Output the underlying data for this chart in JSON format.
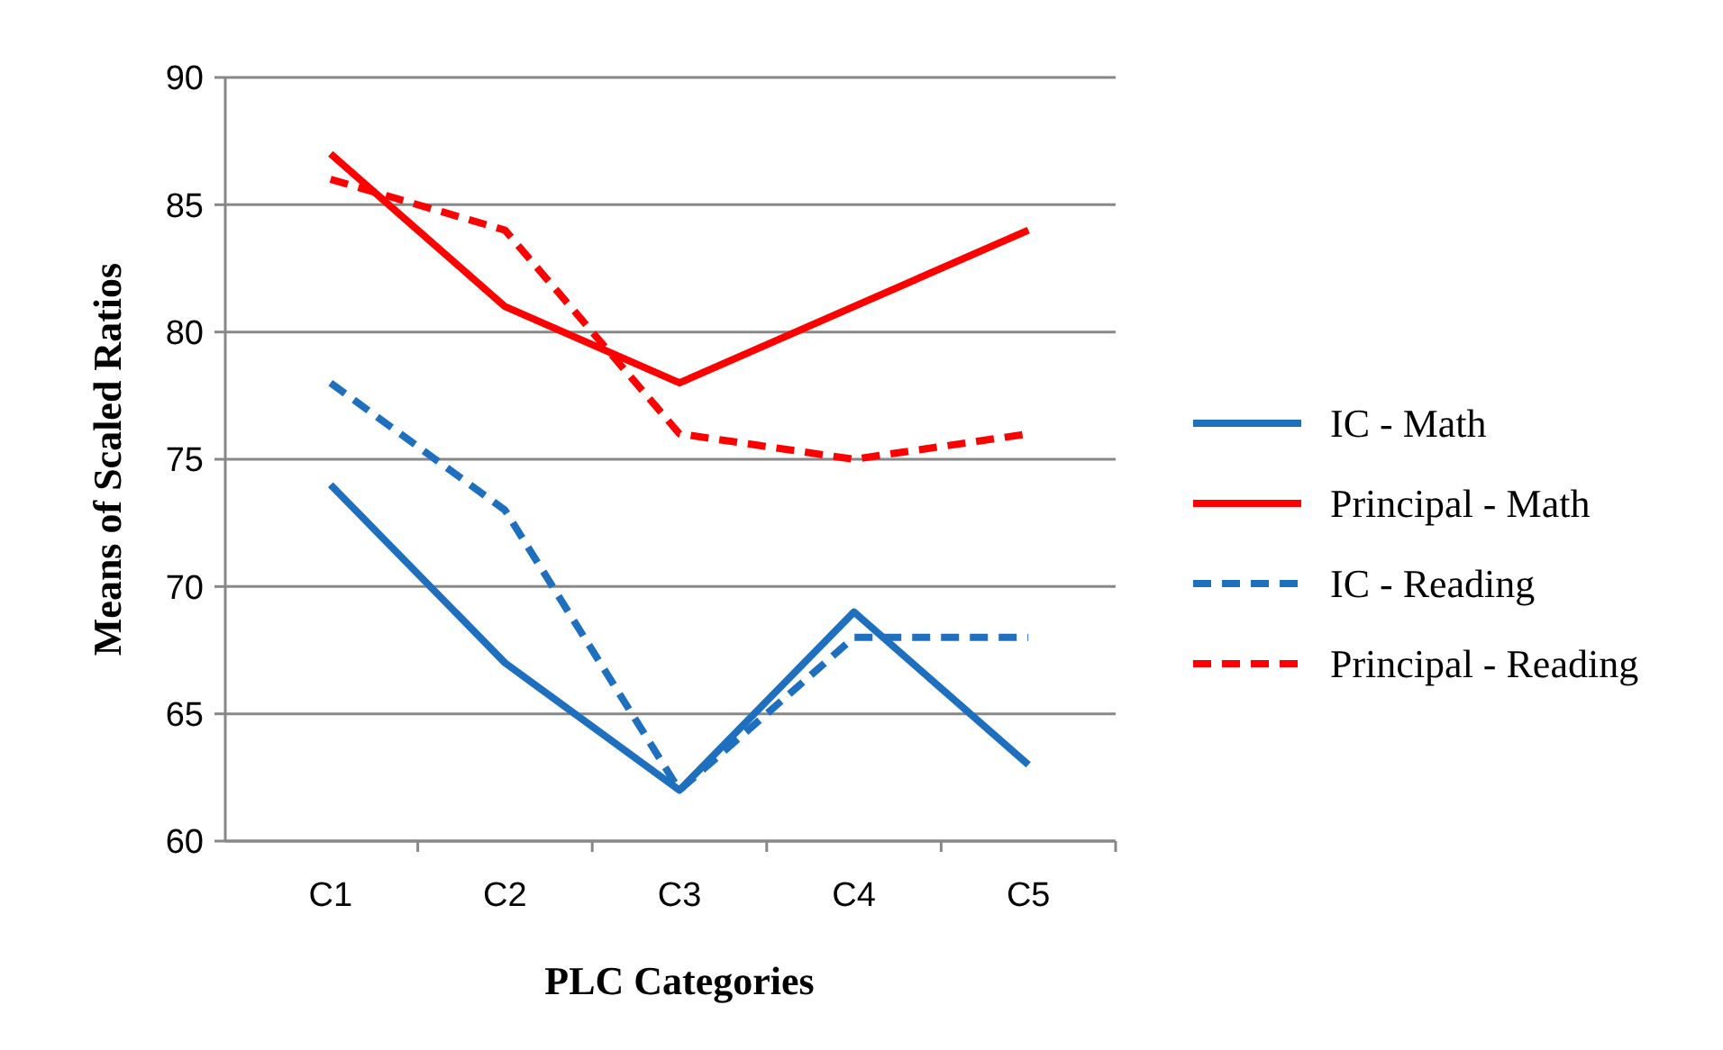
{
  "chart_data": {
    "type": "line",
    "xlabel": "PLC Categories",
    "ylabel": "Means of Scaled Ratios",
    "categories": [
      "C1",
      "C2",
      "C3",
      "C4",
      "C5"
    ],
    "series": [
      {
        "name": "IC - Math",
        "color": "#1f6fbf",
        "values": [
          74,
          67,
          62,
          69,
          63
        ],
        "line_style": "solid"
      },
      {
        "name": "Principal - Math",
        "color": "#ff0000",
        "values": [
          87,
          81,
          78,
          81,
          84
        ],
        "line_style": "solid"
      },
      {
        "name": "IC - Reading",
        "color": "#1f6fbf",
        "values": [
          78,
          73,
          62,
          68,
          68
        ],
        "line_style": "dashed"
      },
      {
        "name": "Principal - Reading",
        "color": "#ff0000",
        "values": [
          86,
          84,
          76,
          75,
          76
        ],
        "line_style": "dashed"
      }
    ],
    "ylim": [
      60,
      90
    ],
    "yticks": [
      60,
      65,
      70,
      75,
      80,
      85,
      90
    ],
    "grid": "y",
    "legend": "right",
    "marker": "none"
  }
}
